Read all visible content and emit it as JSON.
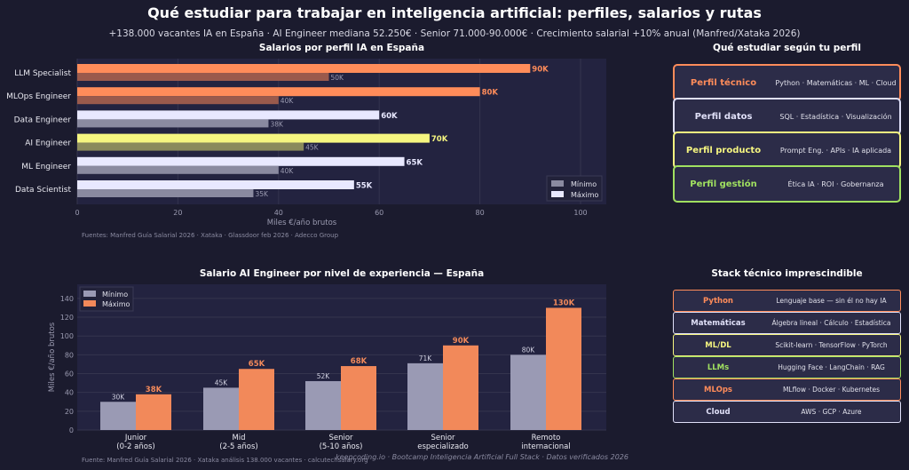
{
  "header": {
    "title": "Qué estudiar para trabajar en inteligencia artificial: perfiles, salarios y rutas",
    "subtitle": "+138.000 vacantes IA en España · AI Engineer mediana 52.250€ · Senior 71.000-90.000€ · Crecimiento salarial +10% anual (Manfred/Xataka 2026)"
  },
  "chart_data": [
    {
      "type": "bar",
      "orientation": "horizontal",
      "title": "Salarios por perfil IA en España",
      "xlabel": "Miles €/año brutos",
      "xlim": [
        0,
        105
      ],
      "xticks": [
        0,
        20,
        40,
        60,
        80,
        100
      ],
      "grid": true,
      "legend": "bottom-right",
      "categories": [
        "LLM Specialist",
        "MLOps Engineer",
        "Data Engineer",
        "AI Engineer",
        "ML Engineer",
        "Data Scientist"
      ],
      "series": [
        {
          "name": "Mínimo",
          "values": [
            50,
            40,
            38,
            45,
            40,
            35
          ],
          "labels": [
            "50K",
            "40K",
            "38K",
            "45K",
            "40K",
            "35K"
          ]
        },
        {
          "name": "Máximo",
          "values": [
            90,
            80,
            60,
            70,
            65,
            55
          ],
          "labels": [
            "90K",
            "80K",
            "60K",
            "70K",
            "65K",
            "55K"
          ]
        }
      ],
      "colors": [
        "#ff8c5a",
        "#ff8c5a",
        "#e8e8ff",
        "#f5f580",
        "#e8e8ff",
        "#e8e8ff"
      ],
      "min_colors": [
        "#9a5a4c",
        "#9a5a4c",
        "#8a8aa0",
        "#8a8a5c",
        "#8a8aa0",
        "#8a8aa0"
      ],
      "source": "Fuentes: Manfred Guía Salarial 2026 · Xataka · Glassdoor feb 2026 · Adecco Group"
    },
    {
      "type": "bar",
      "title": "Salario AI Engineer por nivel de experiencia — España",
      "ylabel": "Miles €/año brutos",
      "ylim": [
        0,
        155
      ],
      "yticks": [
        0,
        20,
        40,
        60,
        80,
        100,
        120,
        140
      ],
      "grid": true,
      "legend": "top-left",
      "categories": [
        [
          "Junior",
          "(0-2 años)"
        ],
        [
          "Mid",
          "(2-5 años)"
        ],
        [
          "Senior",
          "(5-10 años)"
        ],
        [
          "Senior",
          "especializado"
        ],
        [
          "Remoto",
          "internacional"
        ]
      ],
      "series": [
        {
          "name": "Mínimo",
          "color": "#9a9ab4",
          "values": [
            30,
            45,
            52,
            71,
            80
          ],
          "labels": [
            "30K",
            "45K",
            "52K",
            "71K",
            "80K"
          ]
        },
        {
          "name": "Máximo",
          "color": "#f2895a",
          "values": [
            38,
            65,
            68,
            90,
            130
          ],
          "labels": [
            "38K",
            "65K",
            "68K",
            "90K",
            "130K"
          ]
        }
      ],
      "source": "Fuente: Manfred Guía Salarial 2026 · Xataka análisis 138.000 vacantes · calcutechsalary.org"
    }
  ],
  "profiles": {
    "title": "Qué estudiar según tu perfil",
    "items": [
      {
        "name": "Perfil técnico",
        "desc": "Python · Matemáticas · ML · Cloud",
        "color": "#ff8c5a"
      },
      {
        "name": "Perfil datos",
        "desc": "SQL · Estadística · Visualización",
        "color": "#e0e0f8"
      },
      {
        "name": "Perfil producto",
        "desc": "Prompt Eng. · APIs · IA aplicada",
        "color": "#f5f580"
      },
      {
        "name": "Perfil gestión",
        "desc": "Ética IA · ROI · Gobernanza",
        "color": "#a0e060"
      }
    ]
  },
  "stack": {
    "title": "Stack técnico imprescindible",
    "items": [
      {
        "name": "Python",
        "desc": "Lenguaje base — sin él no hay IA",
        "color": "#ff8c5a"
      },
      {
        "name": "Matemáticas",
        "desc": "Álgebra lineal · Cálculo · Estadística",
        "color": "#e0e0f8"
      },
      {
        "name": "ML/DL",
        "desc": "Scikit-learn · TensorFlow · PyTorch",
        "color": "#f5f580"
      },
      {
        "name": "LLMs",
        "desc": "Hugging Face · LangChain · RAG",
        "color": "#a0e060"
      },
      {
        "name": "MLOps",
        "desc": "MLflow · Docker · Kubernetes",
        "color": "#ff8c5a"
      },
      {
        "name": "Cloud",
        "desc": "AWS · GCP · Azure",
        "color": "#e0e0f8"
      }
    ]
  },
  "footer": "keepcoding.io  ·  Bootcamp Inteligencia Artificial Full Stack  ·  Datos verificados 2026"
}
